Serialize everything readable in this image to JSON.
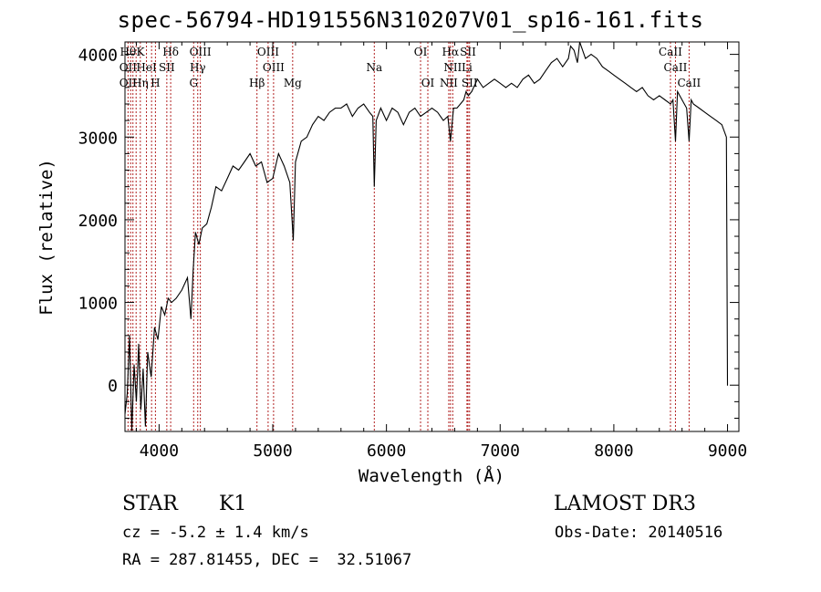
{
  "chart_data": {
    "type": "line",
    "title": "spec-56794-HD191556N310207V01_sp16-161.fits",
    "xlabel": "Wavelength (Å)",
    "ylabel": "Flux (relative)",
    "xlim": [
      3700,
      9100
    ],
    "ylim": [
      -560,
      4150
    ],
    "xticks": [
      "4000",
      "5000",
      "6000",
      "7000",
      "8000",
      "9000"
    ],
    "yticks": [
      "0",
      "1000",
      "2000",
      "3000",
      "4000"
    ],
    "grid": false,
    "legend": "none",
    "line_color": "#000000",
    "marker_color": "#b22222",
    "series": [
      {
        "x": [
          3700,
          3720,
          3740,
          3760,
          3780,
          3800,
          3820,
          3840,
          3860,
          3880,
          3900,
          3930,
          3960,
          3990,
          4020,
          4050,
          4080,
          4110,
          4150,
          4200,
          4250,
          4280,
          4300,
          4320,
          4350,
          4380,
          4420,
          4460,
          4500,
          4550,
          4600,
          4650,
          4700,
          4750,
          4800,
          4850,
          4900,
          4950,
          5000,
          5050,
          5100,
          5150,
          5180,
          5200,
          5250,
          5300,
          5350,
          5400,
          5450,
          5500,
          5550,
          5600,
          5650,
          5700,
          5750,
          5800,
          5850,
          5880,
          5893,
          5910,
          5950,
          6000,
          6050,
          6100,
          6150,
          6200,
          6250,
          6300,
          6350,
          6400,
          6450,
          6500,
          6540,
          6563,
          6590,
          6620,
          6650,
          6680,
          6700,
          6720,
          6750,
          6800,
          6850,
          6900,
          6950,
          7000,
          7050,
          7100,
          7150,
          7200,
          7250,
          7300,
          7350,
          7400,
          7450,
          7500,
          7550,
          7600,
          7620,
          7650,
          7680,
          7700,
          7750,
          7800,
          7850,
          7900,
          7950,
          8000,
          8050,
          8100,
          8150,
          8200,
          8250,
          8300,
          8350,
          8400,
          8450,
          8498,
          8520,
          8542,
          8560,
          8600,
          8640,
          8662,
          8680,
          8700,
          8750,
          8800,
          8850,
          8900,
          8950,
          8990,
          9000
        ],
        "y": [
          -350,
          -100,
          600,
          -550,
          250,
          -200,
          500,
          -300,
          200,
          -500,
          400,
          100,
          700,
          550,
          950,
          850,
          1050,
          1000,
          1050,
          1150,
          1300,
          800,
          1400,
          1850,
          1700,
          1900,
          1950,
          2150,
          2400,
          2350,
          2500,
          2650,
          2600,
          2700,
          2800,
          2650,
          2700,
          2450,
          2500,
          2800,
          2650,
          2450,
          1750,
          2700,
          2950,
          3000,
          3150,
          3250,
          3200,
          3300,
          3350,
          3350,
          3400,
          3250,
          3350,
          3400,
          3300,
          3250,
          2400,
          3200,
          3350,
          3200,
          3350,
          3300,
          3150,
          3300,
          3350,
          3250,
          3300,
          3350,
          3300,
          3200,
          3250,
          2950,
          3350,
          3350,
          3400,
          3450,
          3550,
          3500,
          3550,
          3700,
          3600,
          3650,
          3700,
          3650,
          3600,
          3650,
          3600,
          3700,
          3750,
          3650,
          3700,
          3800,
          3900,
          3950,
          3850,
          3950,
          4100,
          4050,
          3900,
          4150,
          3950,
          4000,
          3950,
          3850,
          3800,
          3750,
          3700,
          3650,
          3600,
          3550,
          3600,
          3500,
          3450,
          3500,
          3450,
          3400,
          3450,
          2950,
          3550,
          3450,
          3350,
          2950,
          3450,
          3400,
          3350,
          3300,
          3250,
          3200,
          3150,
          3000,
          -5
        ]
      }
    ],
    "line_markers": {
      "top": [
        {
          "x": 3727,
          "label": "Hθ"
        },
        {
          "x": 3750,
          "label": ""
        },
        {
          "x": 3770,
          "label": ""
        },
        {
          "x": 3836,
          "label": "K"
        },
        {
          "x": 3889,
          "label": ""
        },
        {
          "x": 3934,
          "label": ""
        },
        {
          "x": 3970,
          "label": ""
        },
        {
          "x": 4102,
          "label": "Hδ"
        },
        {
          "x": 4300,
          "label": ""
        },
        {
          "x": 4363,
          "label": "OIII"
        },
        {
          "x": 4959,
          "label": "OIII"
        },
        {
          "x": 6300,
          "label": "OI"
        },
        {
          "x": 6563,
          "label": "Hα"
        },
        {
          "x": 6717,
          "label": "SII"
        },
        {
          "x": 8498,
          "label": "CaII"
        }
      ],
      "middle": [
        {
          "x": 3727,
          "label": "OII"
        },
        {
          "x": 3889,
          "label": "HeI"
        },
        {
          "x": 4068,
          "label": "SII"
        },
        {
          "x": 4340,
          "label": "Hγ"
        },
        {
          "x": 5007,
          "label": "OIII"
        },
        {
          "x": 5893,
          "label": "Na"
        },
        {
          "x": 6583,
          "label": "NII"
        },
        {
          "x": 6708,
          "label": "Li"
        },
        {
          "x": 8542,
          "label": "CaII"
        }
      ],
      "bottom": [
        {
          "x": 3727,
          "label": "OII"
        },
        {
          "x": 3835,
          "label": "Hη"
        },
        {
          "x": 3968,
          "label": "H"
        },
        {
          "x": 4304,
          "label": "G"
        },
        {
          "x": 4861,
          "label": "Hβ"
        },
        {
          "x": 5175,
          "label": "Mg"
        },
        {
          "x": 6364,
          "label": "OI"
        },
        {
          "x": 6548,
          "label": "NII"
        },
        {
          "x": 6731,
          "label": "SII"
        },
        {
          "x": 8662,
          "label": "CaII"
        }
      ],
      "lines": [
        3727,
        3750,
        3770,
        3798,
        3835,
        3889,
        3934,
        3968,
        4068,
        4102,
        4304,
        4340,
        4363,
        4861,
        4959,
        5007,
        5175,
        5893,
        6300,
        6364,
        6548,
        6563,
        6583,
        6708,
        6717,
        6731,
        8498,
        8542,
        8662
      ]
    }
  },
  "info": {
    "object_class": "STAR",
    "subclass": "K1",
    "survey": "LAMOST DR3",
    "redshift": "cz = -5.2 ± 1.4 km/s",
    "obs_date": "Obs-Date: 20140516",
    "coords": "RA = 287.81455, DEC =  32.51067"
  }
}
